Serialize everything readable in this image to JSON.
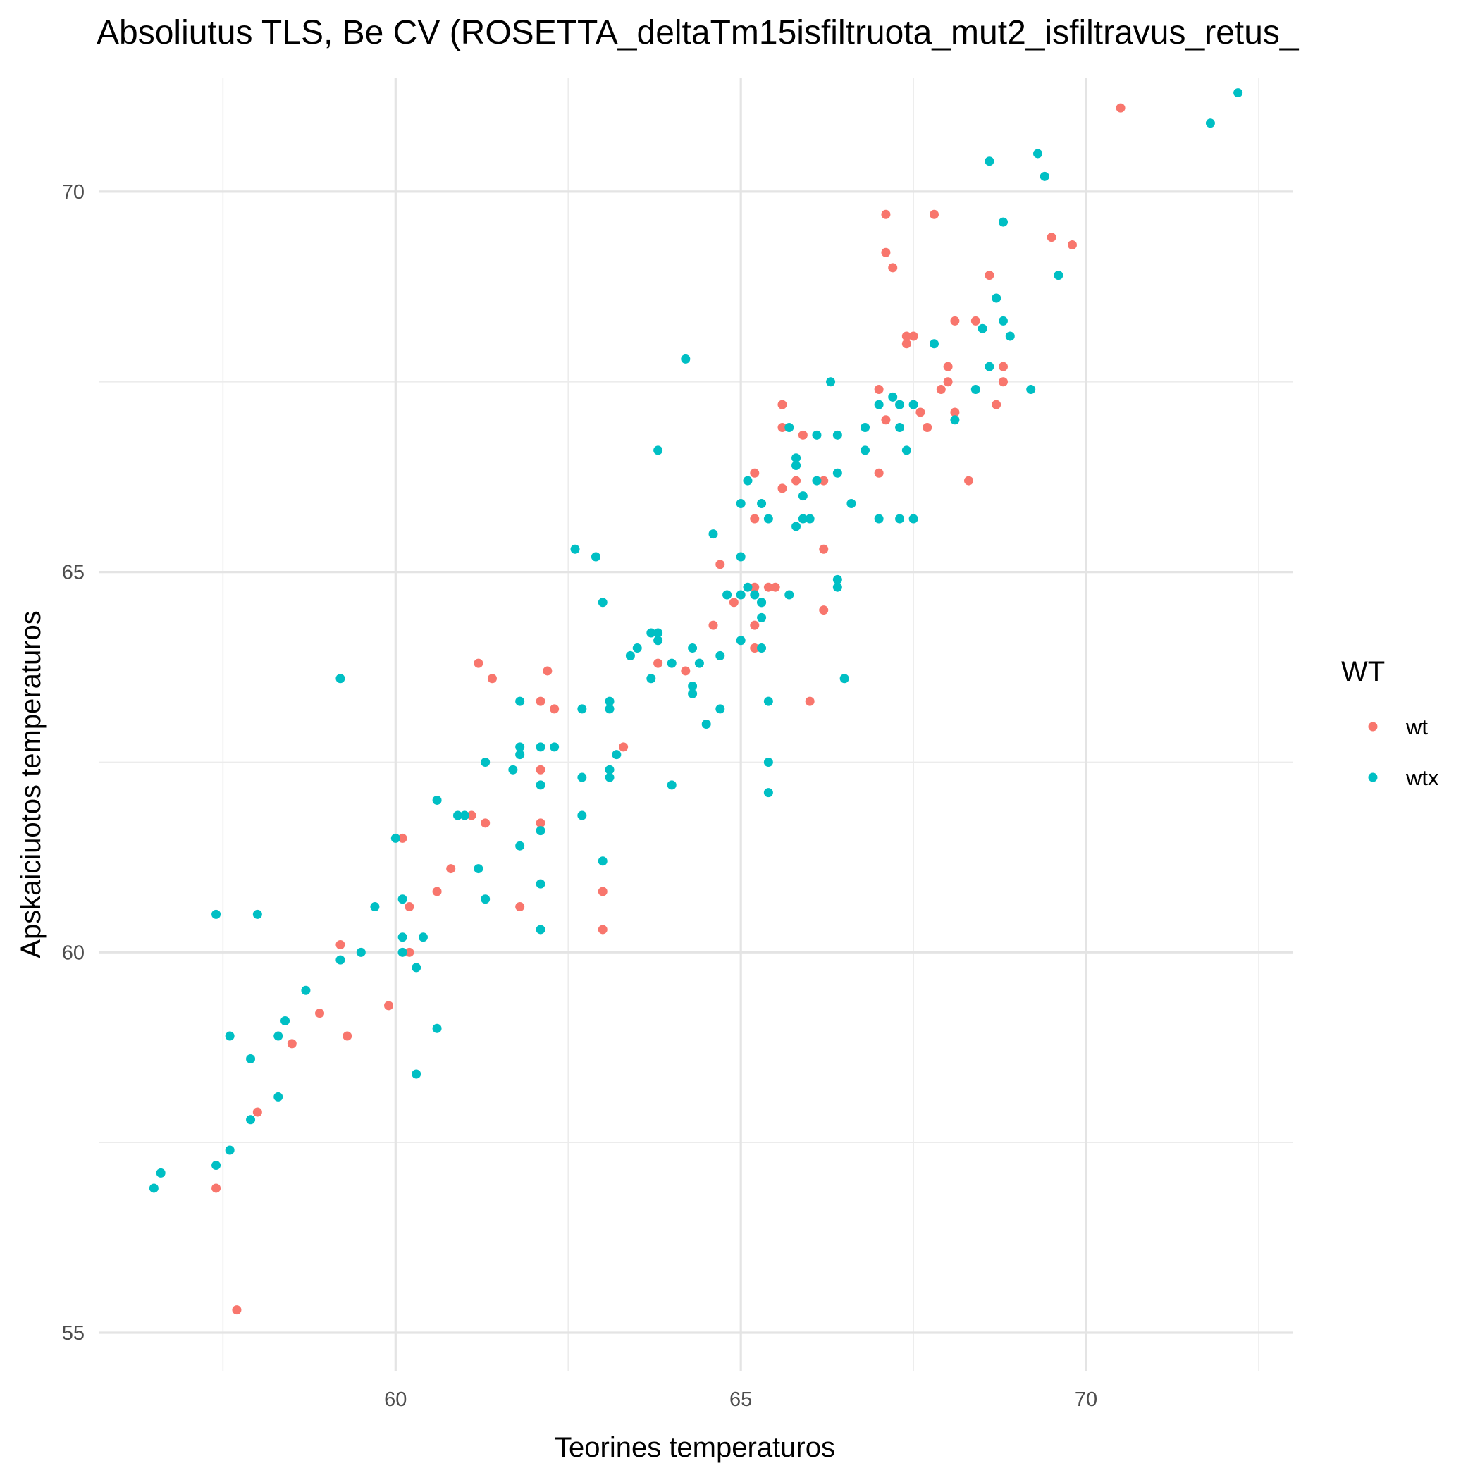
{
  "chart_data": {
    "type": "scatter",
    "title": "Absoliutus  TLS, Be CV (ROSETTA_deltaTm15isfiltruota_mut2_isfiltravus_retus_",
    "xlabel": "Teorines temperaturos",
    "ylabel": "Apskaiciuotos temperaturos",
    "xlim": [
      55.7,
      73.0
    ],
    "ylim": [
      54.5,
      71.5
    ],
    "x_ticks": [
      60,
      65,
      70
    ],
    "y_ticks": [
      55,
      60,
      65,
      70
    ],
    "grid": true,
    "legend": {
      "title": "WT",
      "position": "right"
    },
    "series": [
      {
        "name": "wt",
        "color": "#F8766D",
        "points": [
          [
            57.4,
            56.9
          ],
          [
            57.7,
            55.3
          ],
          [
            58.0,
            57.9
          ],
          [
            58.5,
            58.8
          ],
          [
            58.9,
            59.2
          ],
          [
            59.2,
            60.1
          ],
          [
            59.3,
            58.9
          ],
          [
            59.9,
            59.3
          ],
          [
            60.1,
            61.5
          ],
          [
            60.2,
            60.6
          ],
          [
            60.2,
            60.0
          ],
          [
            60.6,
            60.8
          ],
          [
            60.8,
            61.1
          ],
          [
            61.1,
            61.8
          ],
          [
            61.2,
            63.8
          ],
          [
            61.3,
            61.7
          ],
          [
            61.4,
            63.6
          ],
          [
            61.8,
            60.6
          ],
          [
            62.1,
            63.3
          ],
          [
            62.1,
            62.4
          ],
          [
            62.1,
            61.7
          ],
          [
            62.2,
            63.7
          ],
          [
            62.3,
            63.2
          ],
          [
            63.0,
            60.8
          ],
          [
            63.0,
            60.3
          ],
          [
            63.3,
            62.7
          ],
          [
            63.8,
            63.8
          ],
          [
            64.2,
            63.7
          ],
          [
            64.6,
            64.3
          ],
          [
            64.7,
            65.1
          ],
          [
            64.9,
            64.6
          ],
          [
            65.2,
            66.3
          ],
          [
            65.2,
            65.7
          ],
          [
            65.2,
            64.8
          ],
          [
            65.2,
            64.3
          ],
          [
            65.2,
            64.0
          ],
          [
            65.4,
            64.8
          ],
          [
            65.5,
            64.8
          ],
          [
            65.6,
            67.2
          ],
          [
            65.6,
            66.9
          ],
          [
            65.6,
            66.1
          ],
          [
            65.8,
            66.2
          ],
          [
            65.9,
            66.8
          ],
          [
            66.2,
            66.2
          ],
          [
            66.2,
            65.3
          ],
          [
            66.2,
            64.5
          ],
          [
            66.0,
            63.3
          ],
          [
            67.0,
            66.3
          ],
          [
            67.0,
            67.4
          ],
          [
            67.1,
            67.0
          ],
          [
            67.1,
            69.7
          ],
          [
            67.1,
            69.2
          ],
          [
            67.2,
            69.0
          ],
          [
            67.4,
            68.0
          ],
          [
            67.4,
            68.1
          ],
          [
            67.5,
            68.1
          ],
          [
            67.6,
            67.1
          ],
          [
            67.7,
            66.9
          ],
          [
            67.8,
            69.7
          ],
          [
            67.9,
            67.4
          ],
          [
            68.0,
            67.5
          ],
          [
            68.0,
            67.7
          ],
          [
            68.1,
            67.1
          ],
          [
            68.1,
            68.3
          ],
          [
            68.3,
            66.2
          ],
          [
            68.4,
            68.3
          ],
          [
            68.6,
            68.9
          ],
          [
            68.7,
            67.2
          ],
          [
            68.8,
            67.5
          ],
          [
            68.8,
            67.7
          ],
          [
            69.5,
            69.4
          ],
          [
            69.8,
            69.3
          ],
          [
            70.5,
            71.1
          ]
        ]
      },
      {
        "name": "wtx",
        "color": "#00BFC4",
        "points": [
          [
            56.5,
            56.9
          ],
          [
            56.6,
            57.1
          ],
          [
            57.4,
            57.2
          ],
          [
            57.4,
            60.5
          ],
          [
            57.6,
            57.4
          ],
          [
            57.6,
            58.9
          ],
          [
            58.0,
            60.5
          ],
          [
            57.9,
            58.6
          ],
          [
            57.9,
            57.8
          ],
          [
            58.3,
            58.1
          ],
          [
            58.3,
            58.9
          ],
          [
            58.4,
            59.1
          ],
          [
            58.7,
            59.5
          ],
          [
            59.2,
            63.6
          ],
          [
            59.2,
            59.9
          ],
          [
            59.5,
            60.0
          ],
          [
            59.7,
            60.6
          ],
          [
            60.0,
            61.5
          ],
          [
            60.1,
            60.7
          ],
          [
            60.1,
            60.2
          ],
          [
            60.1,
            60.0
          ],
          [
            60.3,
            58.4
          ],
          [
            60.3,
            59.8
          ],
          [
            60.4,
            60.2
          ],
          [
            60.6,
            62.0
          ],
          [
            60.6,
            59.0
          ],
          [
            60.9,
            61.8
          ],
          [
            61.0,
            61.8
          ],
          [
            61.2,
            61.1
          ],
          [
            61.3,
            62.5
          ],
          [
            61.3,
            60.7
          ],
          [
            61.7,
            62.4
          ],
          [
            61.8,
            61.4
          ],
          [
            61.8,
            62.6
          ],
          [
            61.8,
            62.7
          ],
          [
            61.8,
            63.3
          ],
          [
            62.1,
            62.2
          ],
          [
            62.1,
            61.6
          ],
          [
            62.1,
            60.9
          ],
          [
            62.1,
            60.3
          ],
          [
            62.1,
            62.7
          ],
          [
            62.3,
            62.7
          ],
          [
            62.7,
            62.3
          ],
          [
            62.7,
            63.2
          ],
          [
            62.7,
            61.8
          ],
          [
            62.6,
            65.3
          ],
          [
            62.9,
            65.2
          ],
          [
            63.0,
            64.6
          ],
          [
            63.0,
            61.2
          ],
          [
            63.1,
            63.3
          ],
          [
            63.1,
            63.2
          ],
          [
            63.1,
            62.4
          ],
          [
            63.1,
            62.3
          ],
          [
            63.2,
            62.6
          ],
          [
            63.4,
            63.9
          ],
          [
            63.5,
            64.0
          ],
          [
            63.7,
            64.2
          ],
          [
            63.8,
            64.2
          ],
          [
            63.8,
            64.1
          ],
          [
            63.7,
            63.6
          ],
          [
            63.8,
            66.6
          ],
          [
            64.0,
            63.8
          ],
          [
            64.0,
            62.2
          ],
          [
            64.2,
            67.8
          ],
          [
            64.3,
            64.0
          ],
          [
            64.3,
            63.5
          ],
          [
            64.3,
            63.4
          ],
          [
            64.4,
            63.8
          ],
          [
            64.5,
            63.0
          ],
          [
            64.6,
            65.5
          ],
          [
            64.7,
            63.9
          ],
          [
            64.7,
            63.2
          ],
          [
            64.8,
            64.7
          ],
          [
            65.0,
            65.9
          ],
          [
            65.0,
            65.2
          ],
          [
            65.0,
            64.7
          ],
          [
            65.0,
            64.1
          ],
          [
            65.1,
            66.2
          ],
          [
            65.1,
            64.8
          ],
          [
            65.2,
            64.7
          ],
          [
            65.3,
            64.6
          ],
          [
            65.3,
            64.4
          ],
          [
            65.3,
            64.0
          ],
          [
            65.3,
            64.6
          ],
          [
            65.3,
            65.9
          ],
          [
            65.4,
            65.7
          ],
          [
            65.4,
            63.3
          ],
          [
            65.4,
            62.5
          ],
          [
            65.4,
            62.1
          ],
          [
            65.7,
            66.9
          ],
          [
            65.7,
            64.7
          ],
          [
            65.8,
            66.5
          ],
          [
            65.8,
            65.6
          ],
          [
            65.8,
            66.4
          ],
          [
            65.9,
            66.0
          ],
          [
            65.9,
            65.7
          ],
          [
            66.0,
            65.7
          ],
          [
            66.1,
            66.8
          ],
          [
            66.1,
            66.2
          ],
          [
            66.3,
            67.5
          ],
          [
            66.4,
            66.8
          ],
          [
            66.4,
            66.3
          ],
          [
            66.4,
            64.9
          ],
          [
            66.4,
            64.8
          ],
          [
            66.5,
            63.6
          ],
          [
            66.6,
            65.9
          ],
          [
            66.8,
            66.9
          ],
          [
            66.8,
            66.6
          ],
          [
            67.0,
            67.2
          ],
          [
            67.0,
            65.7
          ],
          [
            67.2,
            67.3
          ],
          [
            67.3,
            67.2
          ],
          [
            67.3,
            66.9
          ],
          [
            67.3,
            65.7
          ],
          [
            67.4,
            66.6
          ],
          [
            67.5,
            65.7
          ],
          [
            67.5,
            67.2
          ],
          [
            67.8,
            68.0
          ],
          [
            68.1,
            67.0
          ],
          [
            68.4,
            67.4
          ],
          [
            68.5,
            68.2
          ],
          [
            68.6,
            67.7
          ],
          [
            68.6,
            70.4
          ],
          [
            68.7,
            68.6
          ],
          [
            68.8,
            69.6
          ],
          [
            68.8,
            68.3
          ],
          [
            68.9,
            68.1
          ],
          [
            69.2,
            67.4
          ],
          [
            69.3,
            70.5
          ],
          [
            69.4,
            70.2
          ],
          [
            69.6,
            68.9
          ],
          [
            71.8,
            70.9
          ],
          [
            72.2,
            71.3
          ]
        ]
      }
    ]
  }
}
